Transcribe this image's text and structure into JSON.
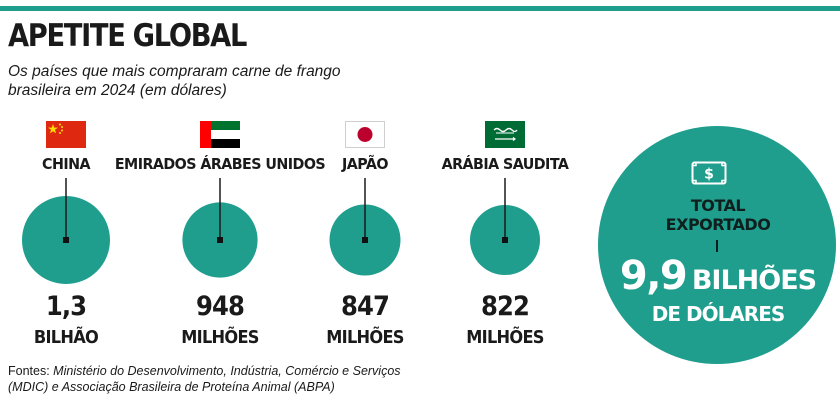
{
  "header": {
    "title": "APETITE GLOBAL",
    "subtitle": "Os países que mais compraram carne de frango brasileira em 2024 (em dólares)"
  },
  "colors": {
    "accent": "#1f9e8e",
    "text": "#1a1a1a"
  },
  "chart_data": {
    "type": "bubble",
    "unit": "US$",
    "categories": [
      "CHINA",
      "EMIRADOS ÁRABES UNIDOS",
      "JAPÃO",
      "ARÁBIA SAUDITA"
    ],
    "values": [
      1300000000,
      948000000,
      847000000,
      822000000
    ],
    "series": [
      {
        "values": [
          1300000000,
          948000000,
          847000000,
          822000000
        ]
      }
    ],
    "value_labels": [
      {
        "number": "1,3",
        "unit": "BILHÃO"
      },
      {
        "number": "948",
        "unit": "MILHÕES"
      },
      {
        "number": "847",
        "unit": "MILHÕES"
      },
      {
        "number": "822",
        "unit": "MILHÕES"
      }
    ],
    "total": {
      "label": "TOTAL EXPORTADO",
      "number": "9,9",
      "number_unit": "BILHÕES",
      "currency": "DE DÓLARES",
      "value": 9900000000,
      "icon": "dollar-bill-icon"
    },
    "flags": [
      "china-flag-icon",
      "uae-flag-icon",
      "japan-flag-icon",
      "saudi-arabia-flag-icon"
    ]
  },
  "footer": {
    "source_label": "Fontes: ",
    "source_text": "Ministério do Desenvolvimento, Indústria, Comércio e Serviços (MDIC) e Associação Brasileira de Proteína Animal (ABPA)"
  }
}
